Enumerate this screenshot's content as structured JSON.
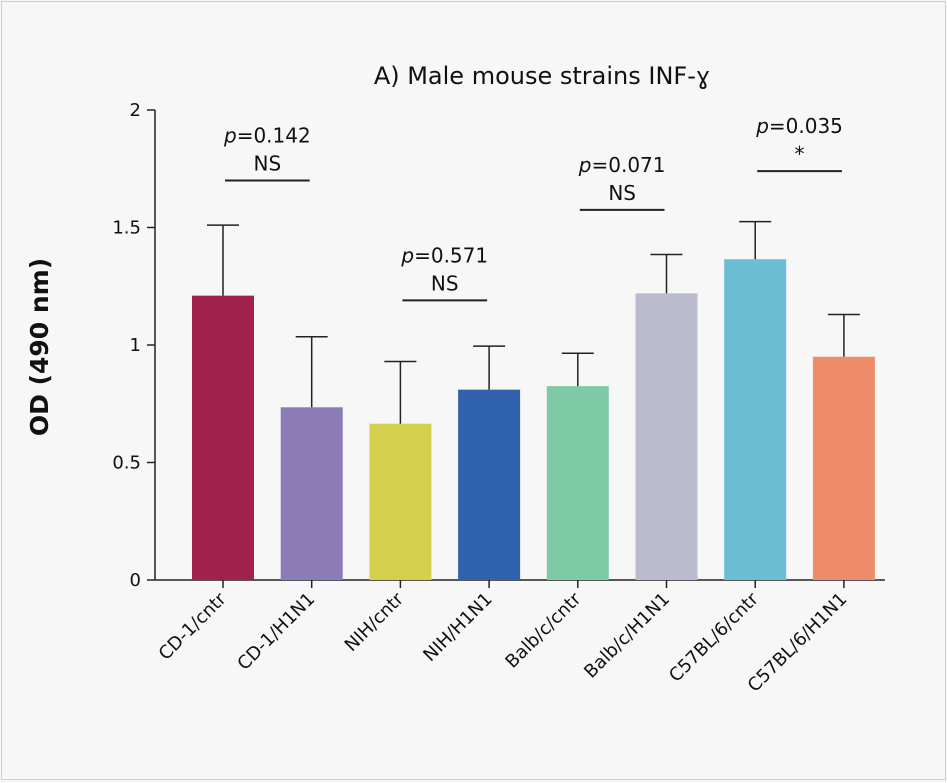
{
  "chart_data": {
    "type": "bar",
    "title": "A) Male mouse strains INF-ɣ",
    "xlabel": "",
    "ylabel": "OD (490 nm)",
    "ylim": [
      0,
      2
    ],
    "yticks": [
      "0",
      "0.5",
      "1",
      "1.5",
      "2"
    ],
    "grid": false,
    "legend": "none",
    "categories": [
      "CD-1/cntr",
      "CD-1/H1N1",
      "NIH/cntr",
      "NIH/H1N1",
      "Balb/c/cntr",
      "Balb/c/H1N1",
      "C57BL/6/cntr",
      "C57BL/6/H1N1"
    ],
    "values": [
      1.21,
      0.735,
      0.665,
      0.81,
      0.825,
      1.22,
      1.365,
      0.95
    ],
    "errors": [
      0.3,
      0.3,
      0.265,
      0.185,
      0.14,
      0.165,
      0.16,
      0.18
    ],
    "colors": [
      "#a0214c",
      "#8b7cb8",
      "#d4d04d",
      "#3162ad",
      "#7ecaa7",
      "#bbbbd0",
      "#6bbdd3",
      "#ee8b6b"
    ],
    "annotations": [
      {
        "bars": [
          0,
          1
        ],
        "level": 1.7,
        "p": "0.142",
        "sig": "NS"
      },
      {
        "bars": [
          2,
          3
        ],
        "level": 1.19,
        "p": "0.571",
        "sig": "NS"
      },
      {
        "bars": [
          4,
          5
        ],
        "level": 1.575,
        "p": "0.071",
        "sig": "NS"
      },
      {
        "bars": [
          6,
          7
        ],
        "level": 1.74,
        "p": "0.035",
        "sig": "*"
      }
    ]
  }
}
